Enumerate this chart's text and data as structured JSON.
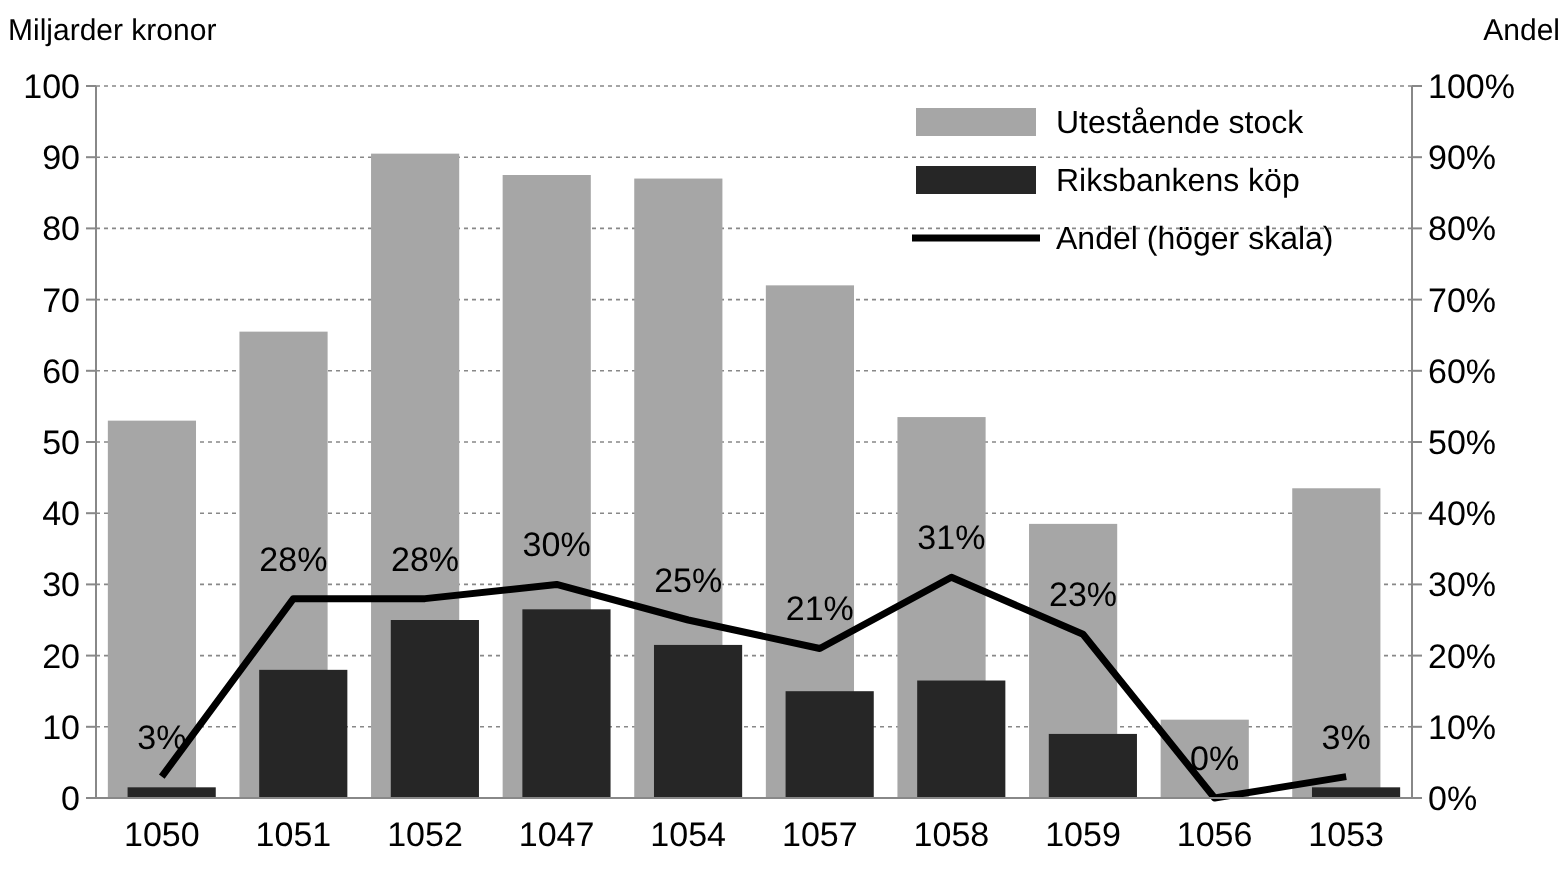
{
  "chart_data": {
    "type": "bar",
    "categories": [
      "1050",
      "1051",
      "1052",
      "1047",
      "1054",
      "1057",
      "1058",
      "1059",
      "1056",
      "1053"
    ],
    "ylabel": "Miljarder kronor",
    "y2label": "Andel",
    "series": [
      {
        "name": "Utestående stock",
        "color": "#a6a6a6",
        "values": [
          53,
          65.5,
          90.5,
          87.5,
          87,
          72,
          53.5,
          38.5,
          11,
          43.5
        ]
      },
      {
        "name": "Riksbankens köp",
        "color": "#262626",
        "values": [
          1.5,
          18,
          25,
          26.5,
          21.5,
          15,
          16.5,
          9,
          0,
          1.5
        ]
      },
      {
        "name": "Andel (höger skala)",
        "type": "line",
        "axis": "y2",
        "color": "#000000",
        "values": [
          3,
          28,
          28,
          30,
          25,
          21,
          31,
          23,
          0,
          3
        ],
        "value_labels": [
          "3%",
          "28%",
          "28%",
          "30%",
          "25%",
          "21%",
          "31%",
          "23%",
          "0%",
          "3%"
        ]
      }
    ],
    "ylim": [
      0,
      100
    ],
    "yticks": [
      0,
      10,
      20,
      30,
      40,
      50,
      60,
      70,
      80,
      90,
      100
    ],
    "y2lim": [
      0,
      100
    ],
    "y2ticks": [
      {
        "value": 0,
        "label": "0%"
      },
      {
        "value": 10,
        "label": "10%"
      },
      {
        "value": 20,
        "label": "20%"
      },
      {
        "value": 30,
        "label": "30%"
      },
      {
        "value": 40,
        "label": "40%"
      },
      {
        "value": 50,
        "label": "50%"
      },
      {
        "value": 60,
        "label": "60%"
      },
      {
        "value": 70,
        "label": "70%"
      },
      {
        "value": 80,
        "label": "80%"
      },
      {
        "value": 90,
        "label": "90%"
      },
      {
        "value": 100,
        "label": "100%"
      }
    ],
    "grid": "y",
    "legend": "top right",
    "marker": "none",
    "line_style": "solid"
  }
}
